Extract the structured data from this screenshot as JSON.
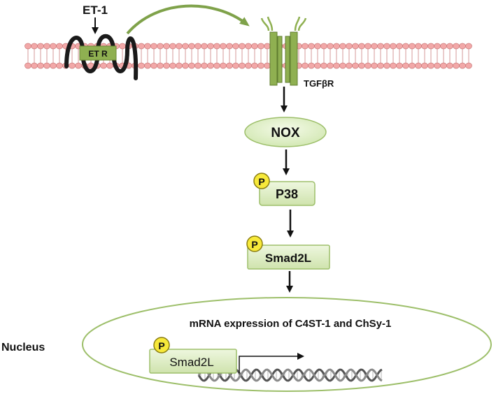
{
  "labels": {
    "ligand": "ET-1",
    "receptor": "ET R",
    "tgf_receptor": "TGFβR",
    "nox": "NOX",
    "p38": "P38",
    "smad_cyto": "Smad2L",
    "smad_nucleus": "Smad2L",
    "phospho": "P",
    "nucleus": "Nucleus",
    "expression": "mRNA expression of C4ST-1 and ChSy-1"
  },
  "colors": {
    "membrane_head": "#f2a8a8",
    "membrane_head_edge": "#c97a7a",
    "receptor_green": "#8fb051",
    "node_fill": "#dcedc2",
    "node_edge": "#9dbf6a",
    "nucleus_edge": "#9dbf6a",
    "phospho_fill": "#f7e93a",
    "arrow": "#111111"
  }
}
